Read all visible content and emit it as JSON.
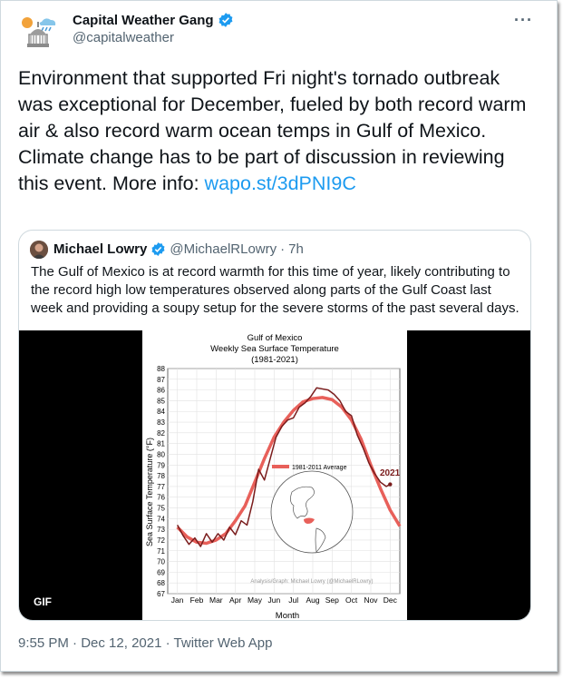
{
  "tweet": {
    "author_name": "Capital Weather Gang",
    "author_handle": "@capitalweather",
    "more_icon": "more-icon",
    "text_main": "Environment that supported Fri night's tornado outbreak was exceptional for December, fueled by both record warm air & also record warm ocean temps in Gulf of Mexico. Climate change has to be part of discussion in reviewing this event. More info: ",
    "link_text": "wapo.st/3dPNI9C",
    "timestamp": "9:55 PM",
    "date": "Dec 12, 2021",
    "source": "Twitter Web App",
    "verified_color": "#1d9bf0"
  },
  "quote": {
    "author_name": "Michael Lowry",
    "author_handle": "@MichaelRLowry",
    "time_ago": "7h",
    "text": "The Gulf of Mexico is at record warmth for this time of year, likely contributing to the record high low temperatures observed along parts of the Gulf Coast last week and providing a soupy setup for the severe storms of the past several days.",
    "gif_label": "GIF"
  },
  "chart_data": {
    "type": "line",
    "title": "Gulf of Mexico",
    "subtitle": "Weekly Sea Surface Temperature",
    "period": "(1981-2021)",
    "xlabel": "Month",
    "ylabel": "Sea Surface Temperature (°F)",
    "categories": [
      "Jan",
      "Feb",
      "Mar",
      "Apr",
      "May",
      "Jun",
      "Jul",
      "Aug",
      "Sep",
      "Oct",
      "Nov",
      "Dec"
    ],
    "ylim": [
      67,
      88
    ],
    "yticks": [
      67,
      68,
      69,
      70,
      71,
      72,
      73,
      74,
      75,
      76,
      77,
      78,
      79,
      80,
      81,
      82,
      83,
      84,
      85,
      86,
      87,
      88
    ],
    "grid": true,
    "legend_label": "1981-2011 Average",
    "legend_placement": "center",
    "series_2021_label": "2021",
    "credit": "Analysis/Graph: Michael Lowry (@MichaelRLowry)",
    "series": [
      {
        "name": "1981-2011 Average",
        "color": "#e8605a",
        "x": [
          0,
          0.5,
          1,
          1.5,
          2,
          2.5,
          3,
          3.5,
          4,
          4.5,
          5,
          5.5,
          6,
          6.5,
          7,
          7.5,
          8,
          8.5,
          9,
          9.5,
          10,
          10.5,
          11,
          11.5
        ],
        "values": [
          73.2,
          72.3,
          71.8,
          71.7,
          72.0,
          72.6,
          73.8,
          75.2,
          77.4,
          79.6,
          81.6,
          83.0,
          84.1,
          84.9,
          85.2,
          85.3,
          85.1,
          84.4,
          83.2,
          81.4,
          79.0,
          76.8,
          74.8,
          73.3
        ]
      },
      {
        "name": "2021",
        "color": "#7a1c1c",
        "x": [
          0,
          0.3,
          0.6,
          0.9,
          1.2,
          1.5,
          1.8,
          2.1,
          2.4,
          2.7,
          3.0,
          3.3,
          3.6,
          3.9,
          4.2,
          4.5,
          4.8,
          5.1,
          5.4,
          5.7,
          6.0,
          6.3,
          6.6,
          6.9,
          7.2,
          7.5,
          7.8,
          8.1,
          8.4,
          8.7,
          9.0,
          9.3,
          9.6,
          9.9,
          10.2,
          10.5,
          10.8,
          11.0
        ],
        "values": [
          73.4,
          72.4,
          71.6,
          72.2,
          71.4,
          72.6,
          71.8,
          72.6,
          72.0,
          73.2,
          72.5,
          73.8,
          73.4,
          75.6,
          78.6,
          77.6,
          79.6,
          81.6,
          82.6,
          83.2,
          83.4,
          84.4,
          84.8,
          85.4,
          86.2,
          86.1,
          86.0,
          85.6,
          85.0,
          84.0,
          83.6,
          81.8,
          80.6,
          79.2,
          78.2,
          77.4,
          77.0,
          77.2
        ]
      }
    ]
  }
}
